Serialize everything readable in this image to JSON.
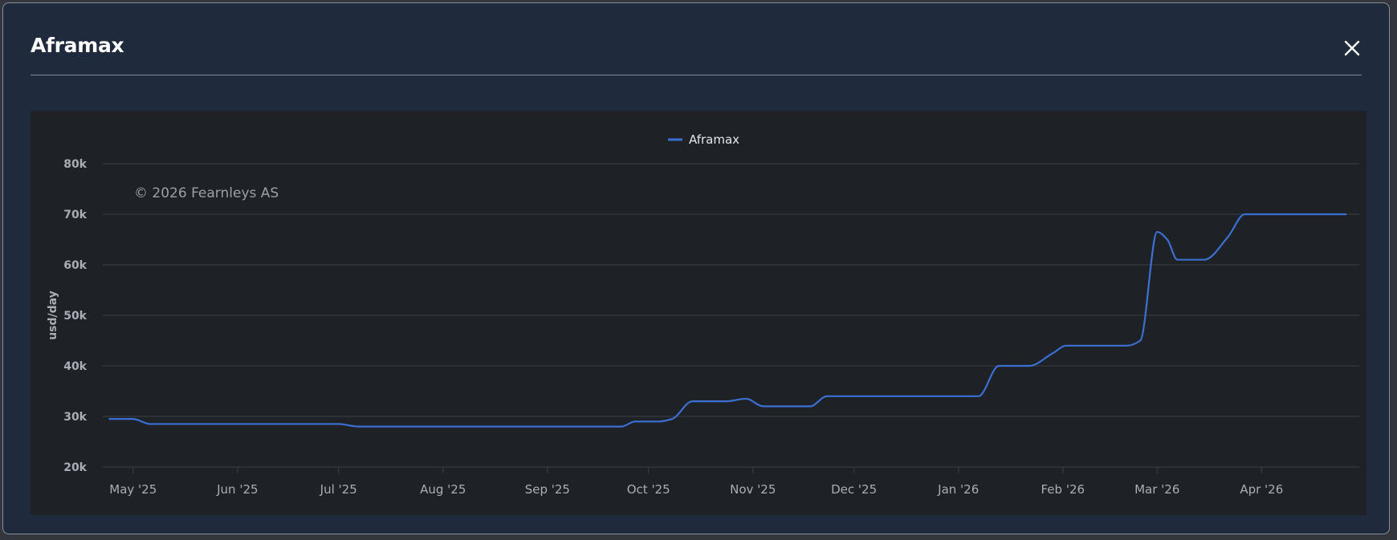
{
  "modal": {
    "title": "Aframax"
  },
  "icons": {
    "close": "close-icon"
  },
  "colors": {
    "modal_background": "#1f2a3c",
    "chart_background": "#1e2227",
    "series_line": "#3b6fd1",
    "grid": "#3b4048",
    "tick_text": "#a9aeb6",
    "watermark_text": "#9aa0a8"
  },
  "chart_data": {
    "type": "line",
    "title": "",
    "watermark": "© 2026 Fearnleys AS",
    "xlabel": "",
    "ylabel": "usd/day",
    "legend_position": "top-center",
    "grid": true,
    "ylim": [
      20000,
      80000
    ],
    "y_ticks": [
      {
        "value": 20000,
        "label": "20k"
      },
      {
        "value": 30000,
        "label": "30k"
      },
      {
        "value": 40000,
        "label": "40k"
      },
      {
        "value": 50000,
        "label": "50k"
      },
      {
        "value": 60000,
        "label": "60k"
      },
      {
        "value": 70000,
        "label": "70k"
      },
      {
        "value": 80000,
        "label": "80k"
      }
    ],
    "xlim": [
      "2025-04-22",
      "2026-04-30"
    ],
    "x_ticks": [
      {
        "date": "2025-05-01",
        "label": "May '25"
      },
      {
        "date": "2025-06-01",
        "label": "Jun '25"
      },
      {
        "date": "2025-07-01",
        "label": "Jul '25"
      },
      {
        "date": "2025-08-01",
        "label": "Aug '25"
      },
      {
        "date": "2025-09-01",
        "label": "Sep '25"
      },
      {
        "date": "2025-10-01",
        "label": "Oct '25"
      },
      {
        "date": "2025-11-01",
        "label": "Nov '25"
      },
      {
        "date": "2025-12-01",
        "label": "Dec '25"
      },
      {
        "date": "2026-01-01",
        "label": "Jan '26"
      },
      {
        "date": "2026-02-01",
        "label": "Feb '26"
      },
      {
        "date": "2026-03-01",
        "label": "Mar '26"
      },
      {
        "date": "2026-04-01",
        "label": "Apr '26"
      }
    ],
    "series": [
      {
        "name": "Aframax",
        "color": "#3b6fd1",
        "points": [
          {
            "x": "2025-04-24",
            "y": 29500
          },
          {
            "x": "2025-05-01",
            "y": 29500
          },
          {
            "x": "2025-05-06",
            "y": 28500
          },
          {
            "x": "2025-05-15",
            "y": 28500
          },
          {
            "x": "2025-06-01",
            "y": 28500
          },
          {
            "x": "2025-07-01",
            "y": 28500
          },
          {
            "x": "2025-07-07",
            "y": 28000
          },
          {
            "x": "2025-08-01",
            "y": 28000
          },
          {
            "x": "2025-09-01",
            "y": 28000
          },
          {
            "x": "2025-09-23",
            "y": 28000
          },
          {
            "x": "2025-09-27",
            "y": 29000
          },
          {
            "x": "2025-10-04",
            "y": 29000
          },
          {
            "x": "2025-10-08",
            "y": 29500
          },
          {
            "x": "2025-10-14",
            "y": 33000
          },
          {
            "x": "2025-10-24",
            "y": 33000
          },
          {
            "x": "2025-10-30",
            "y": 33500
          },
          {
            "x": "2025-11-04",
            "y": 32000
          },
          {
            "x": "2025-11-18",
            "y": 32000
          },
          {
            "x": "2025-11-23",
            "y": 34000
          },
          {
            "x": "2025-12-15",
            "y": 34000
          },
          {
            "x": "2026-01-07",
            "y": 34000
          },
          {
            "x": "2026-01-13",
            "y": 40000
          },
          {
            "x": "2026-01-22",
            "y": 40000
          },
          {
            "x": "2026-01-29",
            "y": 42500
          },
          {
            "x": "2026-02-02",
            "y": 44000
          },
          {
            "x": "2026-02-20",
            "y": 44000
          },
          {
            "x": "2026-02-24",
            "y": 45000
          },
          {
            "x": "2026-03-01",
            "y": 66500
          },
          {
            "x": "2026-03-04",
            "y": 65000
          },
          {
            "x": "2026-03-07",
            "y": 61000
          },
          {
            "x": "2026-03-15",
            "y": 61000
          },
          {
            "x": "2026-03-22",
            "y": 65500
          },
          {
            "x": "2026-03-27",
            "y": 70000
          },
          {
            "x": "2026-04-10",
            "y": 70000
          },
          {
            "x": "2026-04-26",
            "y": 70000
          }
        ]
      }
    ]
  }
}
